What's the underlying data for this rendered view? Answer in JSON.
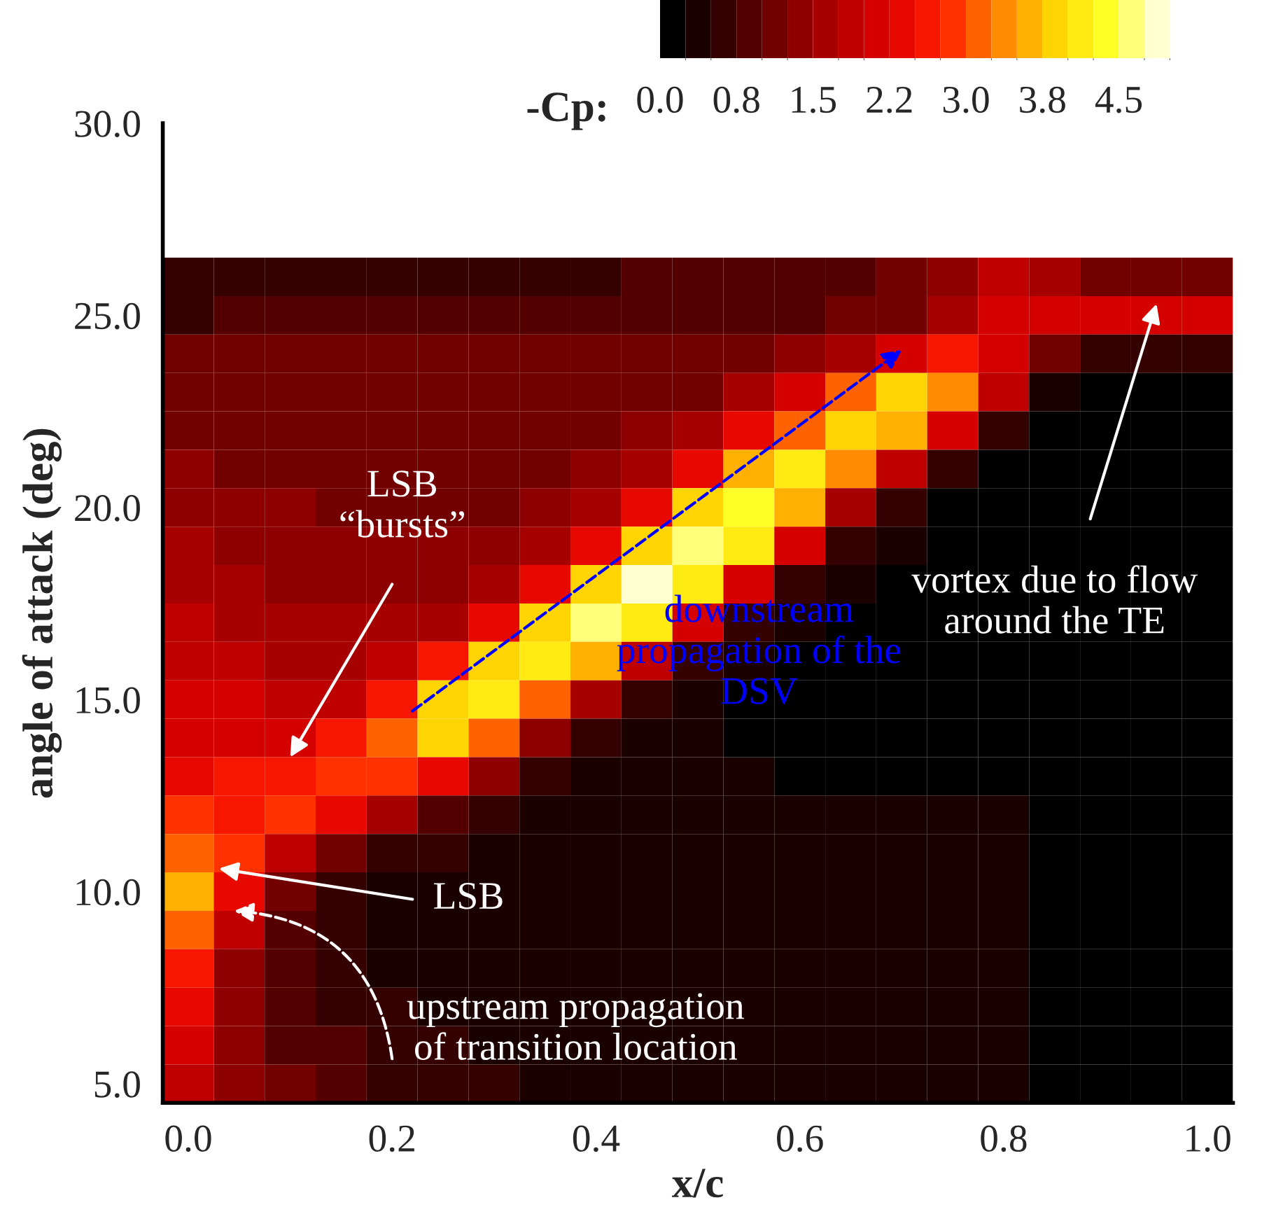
{
  "chart_data": {
    "type": "heatmap",
    "xlabel": "x/c",
    "ylabel": "angle of attack (deg)",
    "clabel": "-Cp:",
    "categories": [
      "0.0",
      null,
      null,
      null,
      "0.2",
      null,
      null,
      null,
      "0.4",
      null,
      null,
      null,
      "0.6",
      null,
      null,
      null,
      "0.8",
      null,
      null,
      null,
      "1.0"
    ],
    "y_categories": [
      null,
      "25.0",
      null,
      null,
      null,
      null,
      "20.0",
      null,
      null,
      null,
      null,
      "15.0",
      null,
      null,
      null,
      null,
      "10.0",
      null,
      null,
      null,
      null,
      "5.0"
    ],
    "cells": [
      [
        0.6,
        0.7,
        0.7,
        0.7,
        0.7,
        0.7,
        0.7,
        0.7,
        0.7,
        0.8,
        0.8,
        0.8,
        0.8,
        0.9,
        1.0,
        1.3,
        1.8,
        1.6,
        1.2,
        1.2,
        1.2
      ],
      [
        0.7,
        0.8,
        0.8,
        0.8,
        0.8,
        0.8,
        0.8,
        0.8,
        0.8,
        0.9,
        0.9,
        0.9,
        0.9,
        1.0,
        1.2,
        1.5,
        2.2,
        2.0,
        2.0,
        2.2,
        2.2
      ],
      [
        1.0,
        1.0,
        1.0,
        1.0,
        1.0,
        1.0,
        1.0,
        1.0,
        1.0,
        1.0,
        1.1,
        1.2,
        1.3,
        1.6,
        2.2,
        2.6,
        2.0,
        1.0,
        0.6,
        0.5,
        0.5
      ],
      [
        1.1,
        1.1,
        1.1,
        1.1,
        1.1,
        1.1,
        1.1,
        1.1,
        1.1,
        1.1,
        1.2,
        1.5,
        2.2,
        3.0,
        3.8,
        3.4,
        1.8,
        0.4,
        0.2,
        0.2,
        0.2
      ],
      [
        1.2,
        1.2,
        1.2,
        1.2,
        1.2,
        1.2,
        1.2,
        1.2,
        1.2,
        1.3,
        1.6,
        2.4,
        3.2,
        3.9,
        3.5,
        2.2,
        0.5,
        0.2,
        0.2,
        0.1,
        0.1
      ],
      [
        1.3,
        1.2,
        1.2,
        1.2,
        1.2,
        1.2,
        1.2,
        1.2,
        1.3,
        1.6,
        2.4,
        3.6,
        4.1,
        3.4,
        1.8,
        0.5,
        0.2,
        0.2,
        0.1,
        0.1,
        0.1
      ],
      [
        1.4,
        1.3,
        1.3,
        1.2,
        1.2,
        1.2,
        1.2,
        1.3,
        1.6,
        2.4,
        3.8,
        4.4,
        3.6,
        1.6,
        0.5,
        0.2,
        0.2,
        0.2,
        0.1,
        0.1,
        0.1
      ],
      [
        1.5,
        1.4,
        1.3,
        1.3,
        1.3,
        1.3,
        1.3,
        1.6,
        2.4,
        3.8,
        4.6,
        4.0,
        2.0,
        0.6,
        0.3,
        0.2,
        0.2,
        0.2,
        0.1,
        0.1,
        0.1
      ],
      [
        1.6,
        1.5,
        1.4,
        1.4,
        1.4,
        1.4,
        1.6,
        2.4,
        3.9,
        4.8,
        4.2,
        2.2,
        0.7,
        0.3,
        0.2,
        0.2,
        0.2,
        0.2,
        0.1,
        0.1,
        0.1
      ],
      [
        1.8,
        1.6,
        1.6,
        1.5,
        1.5,
        1.7,
        2.4,
        3.9,
        4.5,
        4.0,
        2.0,
        0.7,
        0.3,
        0.2,
        0.2,
        0.2,
        0.2,
        0.2,
        0.1,
        0.1,
        0.1
      ],
      [
        1.9,
        1.8,
        1.7,
        1.7,
        1.8,
        2.5,
        3.9,
        4.2,
        3.6,
        1.8,
        0.7,
        0.3,
        0.2,
        0.2,
        0.2,
        0.2,
        0.2,
        0.2,
        0.1,
        0.1,
        0.1
      ],
      [
        2.0,
        2.0,
        1.9,
        1.9,
        2.6,
        3.8,
        4.0,
        3.2,
        1.5,
        0.6,
        0.3,
        0.2,
        0.2,
        0.2,
        0.2,
        0.2,
        0.2,
        0.2,
        0.1,
        0.1,
        0.1
      ],
      [
        2.1,
        2.2,
        2.2,
        2.6,
        3.2,
        3.8,
        3.0,
        1.4,
        0.6,
        0.3,
        0.3,
        0.2,
        0.2,
        0.2,
        0.2,
        0.2,
        0.2,
        0.2,
        0.1,
        0.1,
        0.1
      ],
      [
        2.4,
        2.5,
        2.7,
        2.9,
        2.8,
        2.3,
        1.4,
        0.6,
        0.4,
        0.3,
        0.3,
        0.3,
        0.2,
        0.2,
        0.2,
        0.2,
        0.2,
        0.2,
        0.1,
        0.1,
        0.1
      ],
      [
        2.8,
        2.7,
        2.8,
        2.4,
        1.6,
        0.9,
        0.6,
        0.4,
        0.3,
        0.3,
        0.3,
        0.3,
        0.3,
        0.3,
        0.3,
        0.3,
        0.3,
        0.2,
        0.1,
        0.1,
        0.1
      ],
      [
        3.2,
        2.8,
        1.8,
        1.0,
        0.6,
        0.5,
        0.4,
        0.3,
        0.3,
        0.3,
        0.3,
        0.3,
        0.3,
        0.3,
        0.3,
        0.3,
        0.3,
        0.2,
        0.1,
        0.1,
        0.1
      ],
      [
        3.6,
        2.4,
        1.0,
        0.5,
        0.4,
        0.3,
        0.3,
        0.3,
        0.3,
        0.3,
        0.3,
        0.3,
        0.3,
        0.3,
        0.3,
        0.3,
        0.3,
        0.2,
        0.1,
        0.1,
        0.1
      ],
      [
        3.0,
        1.8,
        0.8,
        0.5,
        0.4,
        0.3,
        0.3,
        0.3,
        0.3,
        0.3,
        0.3,
        0.3,
        0.3,
        0.3,
        0.3,
        0.3,
        0.3,
        0.2,
        0.1,
        0.1,
        0.1
      ],
      [
        2.6,
        1.4,
        0.8,
        0.6,
        0.4,
        0.4,
        0.3,
        0.3,
        0.3,
        0.3,
        0.3,
        0.3,
        0.3,
        0.3,
        0.3,
        0.3,
        0.3,
        0.2,
        0.1,
        0.1,
        0.1
      ],
      [
        2.3,
        1.3,
        0.9,
        0.7,
        0.5,
        0.4,
        0.4,
        0.3,
        0.3,
        0.3,
        0.3,
        0.3,
        0.3,
        0.3,
        0.3,
        0.3,
        0.3,
        0.2,
        0.1,
        0.1,
        0.1
      ],
      [
        2.1,
        1.3,
        0.9,
        0.8,
        0.6,
        0.5,
        0.4,
        0.4,
        0.3,
        0.3,
        0.3,
        0.3,
        0.3,
        0.3,
        0.3,
        0.3,
        0.3,
        0.2,
        0.1,
        0.1,
        0.1
      ],
      [
        1.9,
        1.3,
        1.0,
        0.8,
        0.7,
        0.6,
        0.5,
        0.4,
        0.4,
        0.3,
        0.3,
        0.3,
        0.3,
        0.3,
        0.3,
        0.3,
        0.3,
        0.2,
        0.1,
        0.1,
        0.1
      ]
    ],
    "clim": [
      0,
      5
    ],
    "cticks": [
      {
        "value": 0,
        "label": "0.0"
      },
      {
        "value": 0.75,
        "label": "0.8"
      },
      {
        "value": 1.5,
        "label": "1.5"
      },
      {
        "value": 2.25,
        "label": "2.2"
      },
      {
        "value": 3.0,
        "label": "3.0"
      },
      {
        "value": 3.75,
        "label": "3.8"
      },
      {
        "value": 4.5,
        "label": "4.5"
      }
    ],
    "grid": false,
    "annotations": [
      "LSB\n“bursts”",
      "LSB",
      "upstream propagation\nof transition location",
      "downstream\npropagation of the\nDSV",
      "vortex due to flow\naround the TE",
      "30.0"
    ]
  }
}
